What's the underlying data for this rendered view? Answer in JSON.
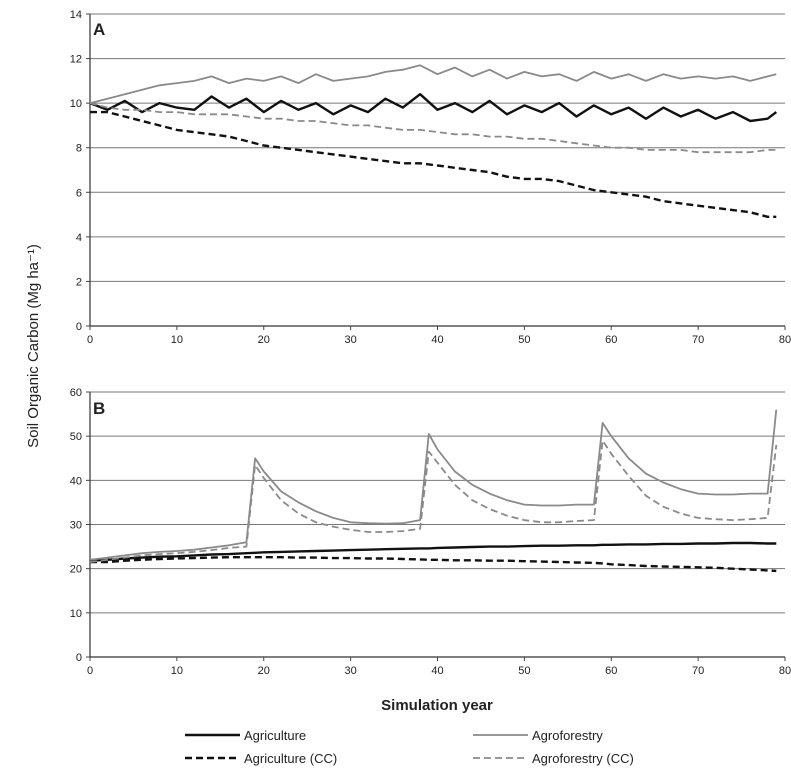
{
  "figure": {
    "ylabel": "Soil Organic Carbon (Mg ha⁻¹)",
    "xlabel": "Simulation year"
  },
  "legend": [
    {
      "label": "Agriculture",
      "color": "#111111",
      "dash": "solid"
    },
    {
      "label": "Agroforestry",
      "color": "#8a8a8a",
      "dash": "solid"
    },
    {
      "label": "Agriculture (CC)",
      "color": "#111111",
      "dash": "dashed"
    },
    {
      "label": "Agroforestry (CC)",
      "color": "#8a8a8a",
      "dash": "dashed"
    }
  ],
  "chart_data": [
    {
      "type": "line",
      "panel": "A",
      "xlim": [
        0,
        80
      ],
      "ylim": [
        0,
        14
      ],
      "xticks": [
        "0",
        "10",
        "20",
        "30",
        "40",
        "50",
        "60",
        "70",
        "80"
      ],
      "yticks": [
        "0",
        "2",
        "4",
        "6",
        "8",
        "10",
        "12",
        "14"
      ],
      "grid": "horizontal",
      "x": [
        0,
        2,
        4,
        6,
        8,
        10,
        12,
        14,
        16,
        18,
        20,
        22,
        24,
        26,
        28,
        30,
        32,
        34,
        36,
        38,
        40,
        42,
        44,
        46,
        48,
        50,
        52,
        54,
        56,
        58,
        60,
        62,
        64,
        66,
        68,
        70,
        72,
        74,
        76,
        78,
        79
      ],
      "series": [
        {
          "name": "Agriculture",
          "color": "#111111",
          "dash": "solid",
          "values": [
            10.0,
            9.7,
            10.1,
            9.6,
            10.0,
            9.8,
            9.7,
            10.3,
            9.8,
            10.2,
            9.6,
            10.1,
            9.7,
            10.0,
            9.5,
            9.9,
            9.6,
            10.2,
            9.8,
            10.4,
            9.7,
            10.0,
            9.6,
            10.1,
            9.5,
            9.9,
            9.6,
            10.0,
            9.4,
            9.9,
            9.5,
            9.8,
            9.3,
            9.8,
            9.4,
            9.7,
            9.3,
            9.6,
            9.2,
            9.3,
            9.6
          ]
        },
        {
          "name": "Agroforestry",
          "color": "#8a8a8a",
          "dash": "solid",
          "values": [
            10.0,
            10.2,
            10.4,
            10.6,
            10.8,
            10.9,
            11.0,
            11.2,
            10.9,
            11.1,
            11.0,
            11.2,
            10.9,
            11.3,
            11.0,
            11.1,
            11.2,
            11.4,
            11.5,
            11.7,
            11.3,
            11.6,
            11.2,
            11.5,
            11.1,
            11.4,
            11.2,
            11.3,
            11.0,
            11.4,
            11.1,
            11.3,
            11.0,
            11.3,
            11.1,
            11.2,
            11.1,
            11.2,
            11.0,
            11.2,
            11.3
          ]
        },
        {
          "name": "Agriculture (CC)",
          "color": "#111111",
          "dash": "dashed",
          "values": [
            9.6,
            9.6,
            9.4,
            9.2,
            9.0,
            8.8,
            8.7,
            8.6,
            8.5,
            8.3,
            8.1,
            8.0,
            7.9,
            7.8,
            7.7,
            7.6,
            7.5,
            7.4,
            7.3,
            7.3,
            7.2,
            7.1,
            7.0,
            6.9,
            6.7,
            6.6,
            6.6,
            6.5,
            6.3,
            6.1,
            6.0,
            5.9,
            5.8,
            5.6,
            5.5,
            5.4,
            5.3,
            5.2,
            5.1,
            4.9,
            4.9
          ]
        },
        {
          "name": "Agroforestry (CC)",
          "color": "#8a8a8a",
          "dash": "dashed",
          "values": [
            10.0,
            9.8,
            9.7,
            9.7,
            9.6,
            9.6,
            9.5,
            9.5,
            9.5,
            9.4,
            9.3,
            9.3,
            9.2,
            9.2,
            9.1,
            9.0,
            9.0,
            8.9,
            8.8,
            8.8,
            8.7,
            8.6,
            8.6,
            8.5,
            8.5,
            8.4,
            8.4,
            8.3,
            8.2,
            8.1,
            8.0,
            8.0,
            7.9,
            7.9,
            7.9,
            7.8,
            7.8,
            7.8,
            7.8,
            7.9,
            7.9
          ]
        }
      ]
    },
    {
      "type": "line",
      "panel": "B",
      "xlim": [
        0,
        80
      ],
      "ylim": [
        0,
        60
      ],
      "xticks": [
        "0",
        "10",
        "20",
        "30",
        "40",
        "50",
        "60",
        "70",
        "80"
      ],
      "yticks": [
        "0",
        "10",
        "20",
        "30",
        "40",
        "50",
        "60"
      ],
      "grid": "horizontal",
      "x": [
        0,
        2,
        4,
        6,
        8,
        10,
        12,
        14,
        16,
        18,
        19,
        20,
        22,
        24,
        26,
        28,
        30,
        32,
        34,
        36,
        38,
        39,
        40,
        42,
        44,
        46,
        48,
        50,
        52,
        54,
        56,
        58,
        59,
        60,
        62,
        64,
        66,
        68,
        70,
        72,
        74,
        76,
        78,
        79
      ],
      "series": [
        {
          "name": "Agriculture",
          "color": "#111111",
          "dash": "solid",
          "values": [
            21.8,
            22.0,
            22.3,
            22.5,
            22.7,
            22.8,
            23.0,
            23.2,
            23.3,
            23.5,
            23.6,
            23.7,
            23.8,
            23.9,
            24.0,
            24.1,
            24.2,
            24.3,
            24.4,
            24.5,
            24.6,
            24.6,
            24.7,
            24.8,
            24.9,
            25.0,
            25.0,
            25.1,
            25.2,
            25.2,
            25.3,
            25.3,
            25.4,
            25.4,
            25.5,
            25.5,
            25.6,
            25.6,
            25.7,
            25.7,
            25.8,
            25.8,
            25.7,
            25.7
          ]
        },
        {
          "name": "Agroforestry",
          "color": "#8a8a8a",
          "dash": "solid",
          "values": [
            22.0,
            22.5,
            23.0,
            23.5,
            23.8,
            24.0,
            24.3,
            24.8,
            25.3,
            26.0,
            45.0,
            42.0,
            37.5,
            35.0,
            33.0,
            31.5,
            30.5,
            30.3,
            30.2,
            30.3,
            31.0,
            50.5,
            47.0,
            42.0,
            39.0,
            37.0,
            35.5,
            34.5,
            34.3,
            34.3,
            34.5,
            34.5,
            53.0,
            50.0,
            45.0,
            41.5,
            39.5,
            38.0,
            37.0,
            36.8,
            36.8,
            37.0,
            37.0,
            56.0
          ]
        },
        {
          "name": "Agriculture (CC)",
          "color": "#111111",
          "dash": "dashed",
          "values": [
            21.5,
            21.5,
            21.8,
            22.0,
            22.2,
            22.3,
            22.4,
            22.5,
            22.6,
            22.6,
            22.6,
            22.6,
            22.6,
            22.5,
            22.5,
            22.4,
            22.4,
            22.3,
            22.3,
            22.2,
            22.1,
            22.0,
            22.0,
            21.9,
            21.9,
            21.8,
            21.8,
            21.7,
            21.6,
            21.5,
            21.4,
            21.3,
            21.2,
            21.0,
            20.8,
            20.6,
            20.5,
            20.4,
            20.3,
            20.2,
            20.0,
            19.8,
            19.6,
            19.5
          ]
        },
        {
          "name": "Agroforestry (CC)",
          "color": "#8a8a8a",
          "dash": "dashed",
          "values": [
            21.5,
            22.0,
            22.5,
            23.0,
            23.3,
            23.5,
            23.8,
            24.2,
            24.7,
            25.0,
            43.5,
            40.5,
            35.5,
            32.5,
            30.5,
            29.5,
            28.8,
            28.3,
            28.3,
            28.5,
            29.0,
            46.5,
            44.0,
            39.0,
            35.5,
            33.5,
            32.0,
            31.0,
            30.5,
            30.5,
            30.8,
            31.0,
            49.0,
            46.0,
            41.0,
            36.5,
            34.0,
            32.5,
            31.5,
            31.2,
            31.0,
            31.2,
            31.5,
            48.0
          ]
        }
      ]
    }
  ]
}
